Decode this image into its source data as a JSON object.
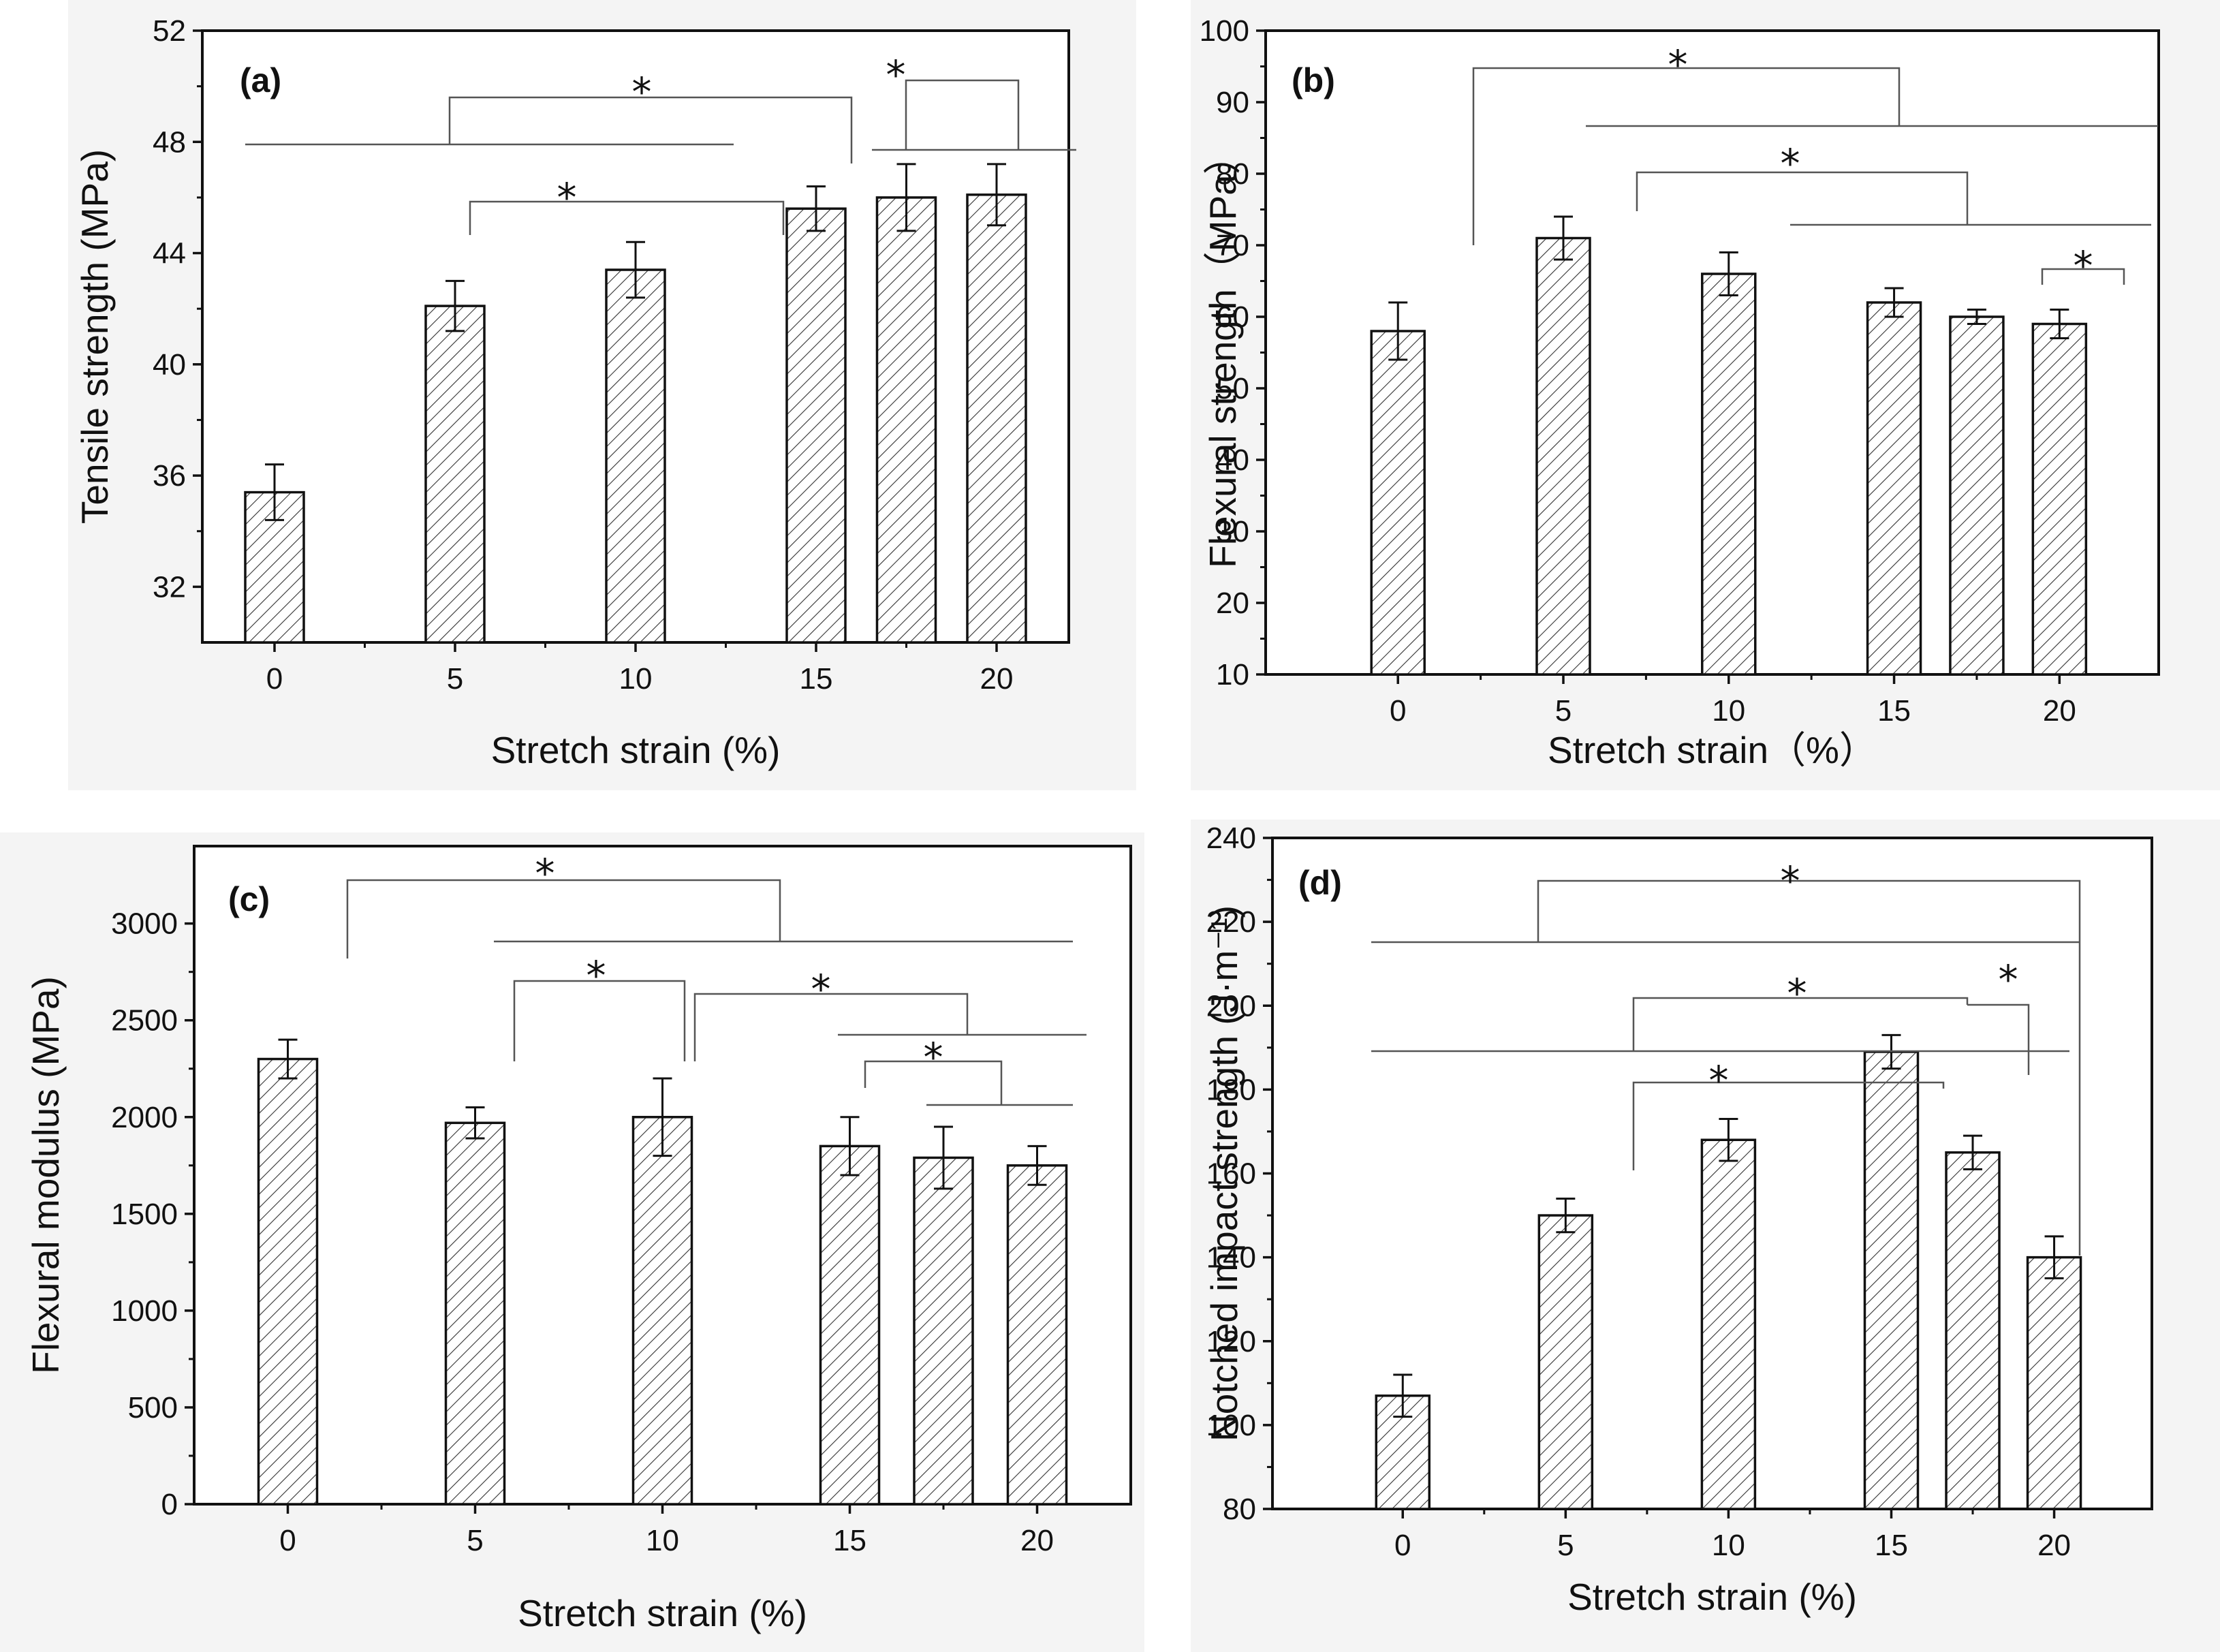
{
  "chart_data": [
    {
      "type": "bar",
      "panel": "(a)",
      "xlabel": "Stretch strain (%)",
      "ylabel": "Tensile strength (MPa)",
      "categories": [
        "0",
        "5",
        "10",
        "15",
        "17.5",
        "20"
      ],
      "x": [
        0,
        5,
        10,
        15,
        17.5,
        20
      ],
      "values": [
        35.4,
        42.1,
        43.4,
        45.6,
        46.0,
        46.1
      ],
      "errors": [
        1.0,
        0.9,
        1.0,
        0.8,
        1.2,
        1.1
      ],
      "xlim": [
        -2,
        22
      ],
      "xticks": [
        "0",
        "5",
        "10",
        "15",
        "20"
      ],
      "ylim": [
        30,
        52
      ],
      "yticks": [
        "32",
        "36",
        "40",
        "44",
        "48",
        "52"
      ],
      "significance": "*"
    },
    {
      "type": "bar",
      "panel": "(b)",
      "xlabel": "Stretch strain（%）",
      "ylabel": "Flexural strength（MPa）",
      "categories": [
        "0",
        "5",
        "10",
        "15",
        "17.5",
        "20"
      ],
      "x": [
        0,
        5,
        10,
        15,
        17.5,
        20
      ],
      "values": [
        58,
        71,
        66,
        62,
        60,
        59
      ],
      "errors": [
        4,
        3,
        3,
        2,
        1,
        2
      ],
      "xlim": [
        -4,
        23
      ],
      "xticks": [
        "0",
        "5",
        "10",
        "15",
        "20"
      ],
      "ylim": [
        10,
        100
      ],
      "yticks": [
        "10",
        "20",
        "30",
        "40",
        "50",
        "60",
        "70",
        "80",
        "90",
        "100"
      ],
      "significance": "*"
    },
    {
      "type": "bar",
      "panel": "(c)",
      "xlabel": "Stretch strain (%)",
      "ylabel": "Flexural modulus (MPa)",
      "categories": [
        "0",
        "5",
        "10",
        "15",
        "17.5",
        "20"
      ],
      "x": [
        0,
        5,
        10,
        15,
        17.5,
        20
      ],
      "values": [
        2300,
        1970,
        2000,
        1850,
        1790,
        1750
      ],
      "errors": [
        100,
        80,
        200,
        150,
        160,
        100
      ],
      "xlim": [
        -2.5,
        22.5
      ],
      "xticks": [
        "0",
        "5",
        "10",
        "15",
        "20"
      ],
      "ylim": [
        0,
        3400
      ],
      "yticks": [
        "0",
        "500",
        "1000",
        "1500",
        "2000",
        "2500",
        "3000"
      ],
      "significance": "*"
    },
    {
      "type": "bar",
      "panel": "(d)",
      "xlabel": "Stretch strain (%)",
      "ylabel": "Notched impact strength (J·m⁻¹)",
      "categories": [
        "0",
        "5",
        "10",
        "15",
        "17.5",
        "20"
      ],
      "x": [
        0,
        5,
        10,
        15,
        17.5,
        20
      ],
      "values": [
        107,
        150,
        168,
        189,
        165,
        140
      ],
      "errors": [
        5,
        4,
        5,
        4,
        4,
        5
      ],
      "xlim": [
        -4,
        23
      ],
      "xticks": [
        "0",
        "5",
        "10",
        "15",
        "20"
      ],
      "ylim": [
        80,
        240
      ],
      "yticks": [
        "80",
        "100",
        "120",
        "140",
        "160",
        "180",
        "200",
        "220",
        "240"
      ],
      "significance": "*"
    }
  ]
}
